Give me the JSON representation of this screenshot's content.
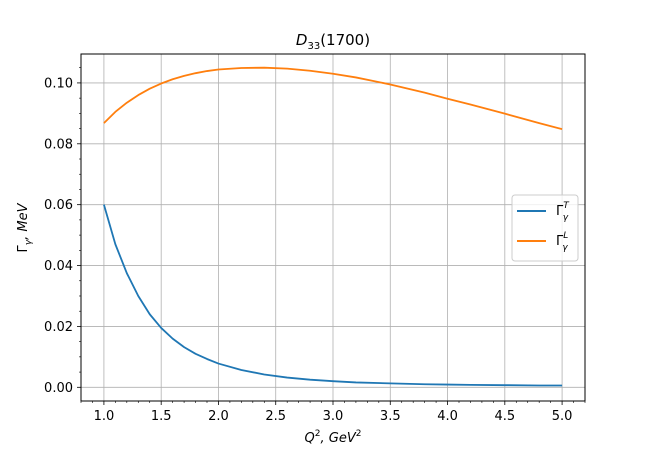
{
  "chart_data": {
    "type": "line",
    "title": {
      "base": "D",
      "sub": "33",
      "rest": "(1700)"
    },
    "xlabel": {
      "Q": "Q",
      "sup": "2",
      "mid": ", GeV",
      "sup2": "2"
    },
    "ylabel": {
      "G": "Γ",
      "sub": "γ",
      "rest": ", MeV"
    },
    "xlim": [
      0.8,
      5.2
    ],
    "ylim": [
      -0.0045,
      0.1095
    ],
    "grid": true,
    "legend_position": "center-right",
    "x_ticks": [
      1.0,
      1.5,
      2.0,
      2.5,
      3.0,
      3.5,
      4.0,
      4.5,
      5.0
    ],
    "x_tick_labels": [
      "1.0",
      "1.5",
      "2.0",
      "2.5",
      "3.0",
      "3.5",
      "4.0",
      "4.5",
      "5.0"
    ],
    "y_ticks": [
      0.0,
      0.02,
      0.04,
      0.06,
      0.08,
      0.1
    ],
    "y_tick_labels": [
      "0.00",
      "0.02",
      "0.04",
      "0.06",
      "0.08",
      "0.10"
    ],
    "x": [
      1.0,
      1.1,
      1.2,
      1.3,
      1.4,
      1.5,
      1.6,
      1.7,
      1.8,
      1.9,
      2.0,
      2.2,
      2.4,
      2.6,
      2.8,
      3.0,
      3.2,
      3.5,
      3.8,
      4.0,
      4.2,
      4.5,
      4.8,
      5.0
    ],
    "series": [
      {
        "legend": {
          "G": "Γ",
          "sub": "γ",
          "sup": "T"
        },
        "color": "#1f77b4",
        "values": [
          0.06,
          0.047,
          0.0375,
          0.03,
          0.024,
          0.0195,
          0.016,
          0.0132,
          0.011,
          0.0093,
          0.0078,
          0.0057,
          0.0042,
          0.0032,
          0.0025,
          0.002,
          0.0016,
          0.0013,
          0.001,
          0.0009,
          0.0008,
          0.0007,
          0.0006,
          0.0006
        ]
      },
      {
        "legend": {
          "G": "Γ",
          "sub": "γ",
          "sup": "L"
        },
        "color": "#ff7f0e",
        "values": [
          0.0868,
          0.0905,
          0.0935,
          0.096,
          0.0981,
          0.0998,
          0.1012,
          0.1023,
          0.1032,
          0.1039,
          0.1044,
          0.1049,
          0.105,
          0.1047,
          0.104,
          0.103,
          0.1018,
          0.0995,
          0.0968,
          0.0948,
          0.0929,
          0.0899,
          0.0868,
          0.0848
        ]
      }
    ]
  }
}
